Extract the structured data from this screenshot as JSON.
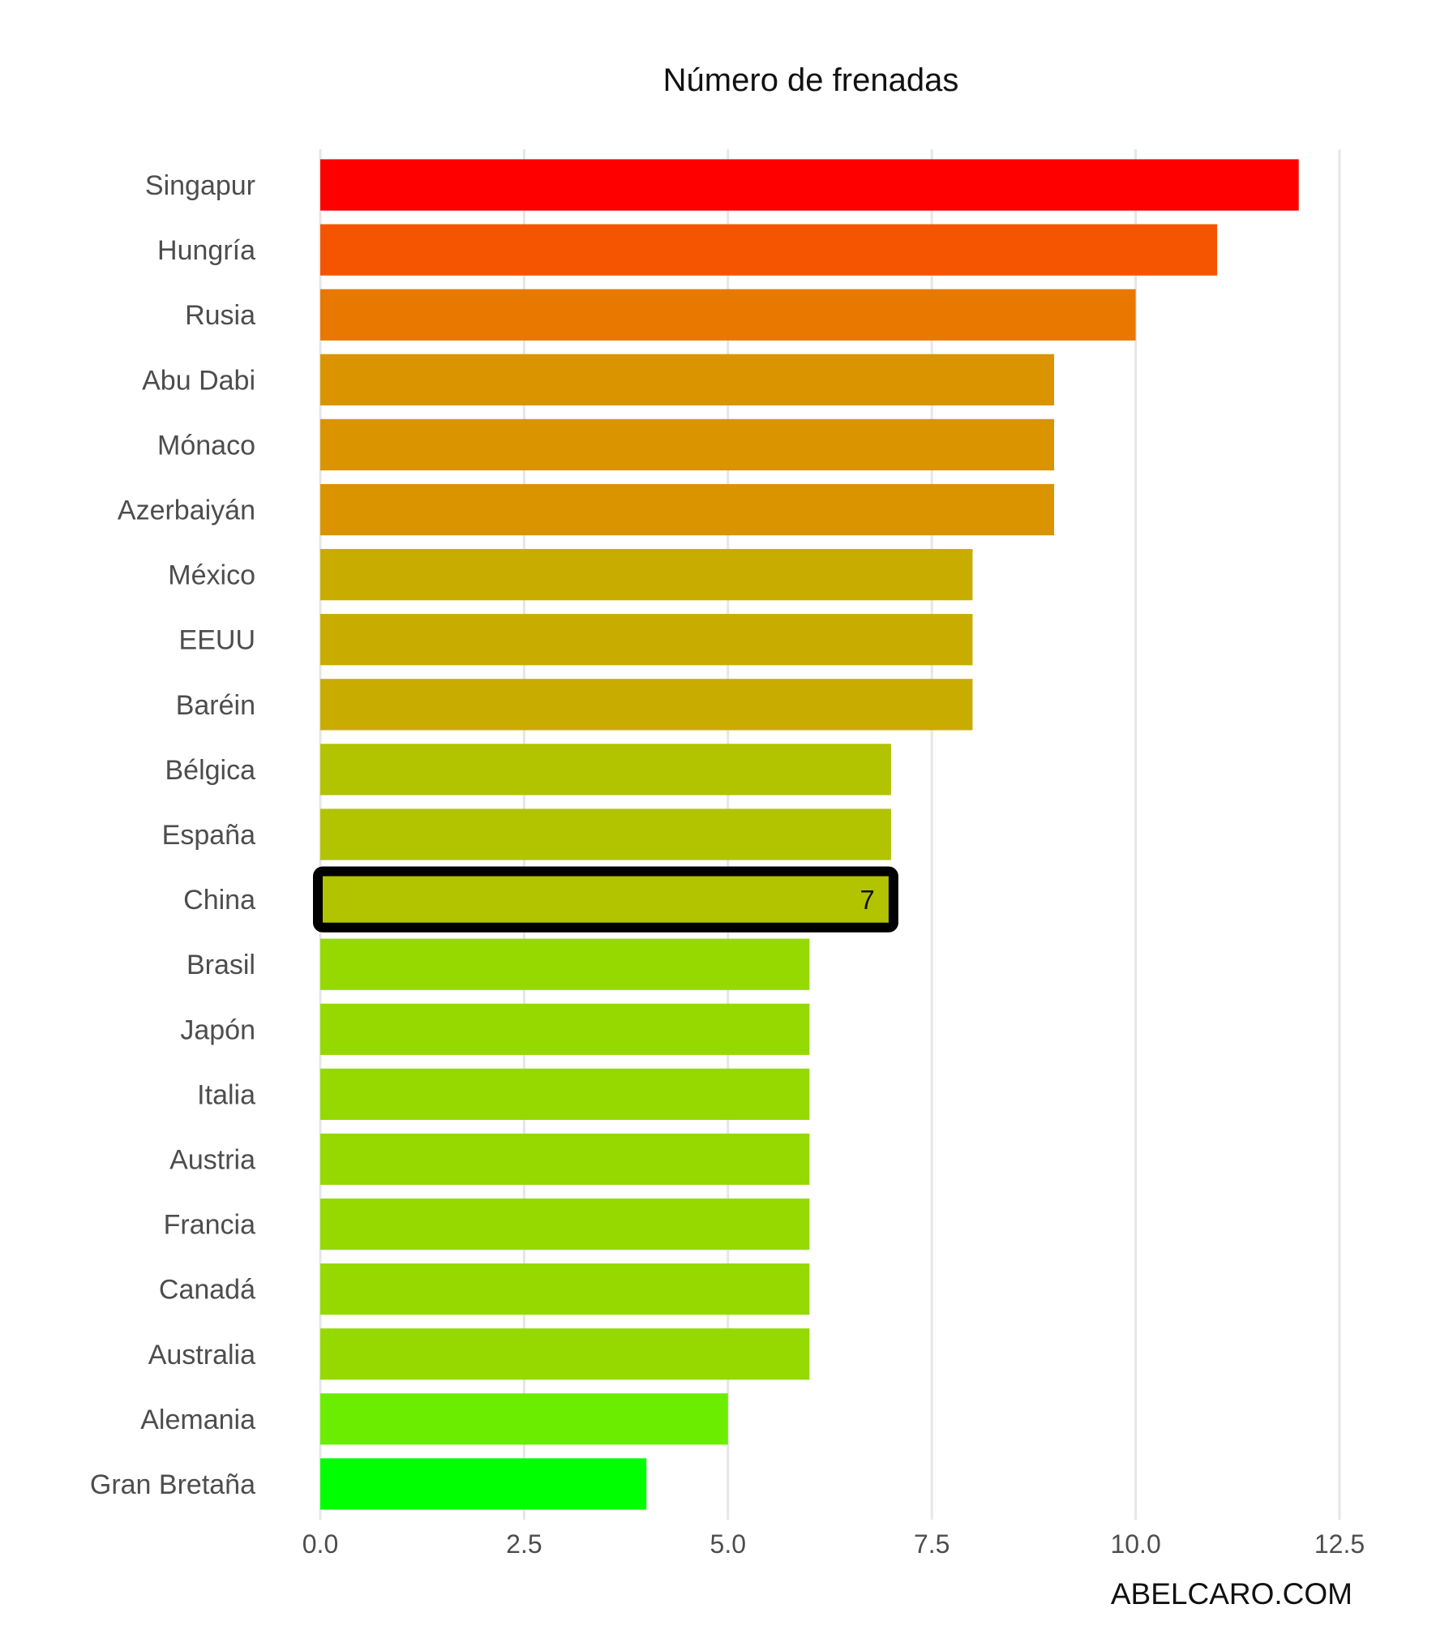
{
  "chart_data": {
    "type": "bar",
    "orientation": "horizontal",
    "title": "Número de frenadas",
    "xlabel": "",
    "ylabel": "",
    "xlim": [
      0,
      12.5
    ],
    "x_ticks": [
      "0.0",
      "2.5",
      "5.0",
      "7.5",
      "10.0",
      "12.5"
    ],
    "x_tick_values": [
      0,
      2.5,
      5,
      7.5,
      10,
      12.5
    ],
    "grid": true,
    "legend": "none",
    "categories": [
      "Singapur",
      "Hungría",
      "Rusia",
      "Abu Dabi",
      "Mónaco",
      "Azerbaiyán",
      "México",
      "EEUU",
      "Baréin",
      "Bélgica",
      "España",
      "China",
      "Brasil",
      "Japón",
      "Italia",
      "Austria",
      "Francia",
      "Canadá",
      "Australia",
      "Alemania",
      "Gran Bretaña"
    ],
    "values": [
      12,
      11,
      10,
      9,
      9,
      9,
      8,
      8,
      8,
      7,
      7,
      7,
      6,
      6,
      6,
      6,
      6,
      6,
      6,
      5,
      4
    ],
    "colors": [
      "#ff0000",
      "#f55500",
      "#e87800",
      "#d99400",
      "#d99400",
      "#d99400",
      "#c8ad00",
      "#c8ad00",
      "#c8ad00",
      "#b2c400",
      "#b2c400",
      "#b2c400",
      "#95d900",
      "#95d900",
      "#95d900",
      "#95d900",
      "#95d900",
      "#95d900",
      "#95d900",
      "#6bed00",
      "#00ff00"
    ],
    "highlight": {
      "category": "China",
      "value_label": "7",
      "outline_color": "#000000"
    },
    "credit": "ABELCARO.COM"
  }
}
